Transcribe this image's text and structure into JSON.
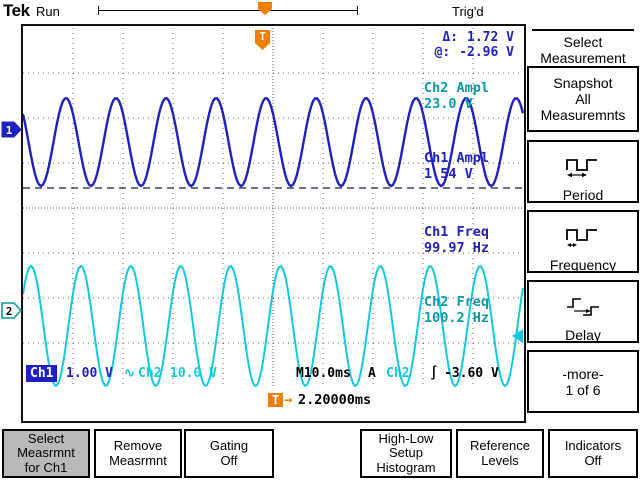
{
  "header": {
    "brand": "Tek",
    "acq_status": "Run",
    "trig_status": "Trig'd"
  },
  "cursor_readout": {
    "delta_label": "Δ:",
    "delta_value": "1.72 V",
    "at_label": "@:",
    "at_value": "-2.96 V"
  },
  "measurements": [
    {
      "label": "Ch2 Ampl\n23.0 V"
    },
    {
      "label": "Ch1 Ampl\n1.54 V"
    },
    {
      "label": "Ch1 Freq\n99.97 Hz"
    },
    {
      "label": "Ch2 Freq\n100.2 Hz"
    }
  ],
  "markers": {
    "ch1": "1",
    "ch2": "2",
    "trigger": "T"
  },
  "status_bar": {
    "ch1_label": "Ch1",
    "ch1_scale": "1.00 V",
    "coupling_symbol": "∿",
    "ch2_label": "Ch2",
    "ch2_scale": "10.0 V",
    "timebase": "M10.0ms",
    "trig_mode": "A",
    "trig_source": "Ch2",
    "trig_slope": "∫",
    "trig_level": "-3.60 V",
    "delay_marker": "T",
    "delay_arrow": "→",
    "delay_value": "2.20000ms"
  },
  "side_menu": {
    "title": "Select\nMeasurement",
    "items": [
      {
        "label": "Snapshot\nAll\nMeasuremnts"
      },
      {
        "label": "Period"
      },
      {
        "label": "Frequency"
      },
      {
        "label": "Delay"
      },
      {
        "label": "-more-\n1 of 6"
      }
    ]
  },
  "bottom_menu": {
    "items": [
      {
        "label": "Select\nMeasrmnt\nfor Ch1",
        "selected": true
      },
      {
        "label": "Remove\nMeasrmnt",
        "selected": false
      },
      {
        "label": "Gating\nOff",
        "selected": false
      },
      {
        "label": "High-Low\nSetup\nHistogram",
        "selected": false
      },
      {
        "label": "Reference\nLevels",
        "selected": false
      },
      {
        "label": "Indicators\nOff",
        "selected": false
      }
    ]
  },
  "colors": {
    "ch1": "#2020c0",
    "ch2": "#14c8dc",
    "ch2_text": "#0a9aa4",
    "accent_orange": "#ef7f00",
    "grid_dot": "#666666",
    "selected_bg": "#b9b9b9"
  },
  "chart_data": {
    "type": "line",
    "title": "Oscilloscope traces",
    "timebase_ms_per_div": 10.0,
    "horizontal_divisions": 10,
    "vertical_divisions": 8,
    "series": [
      {
        "name": "Ch1",
        "waveform": "sine",
        "frequency_hz": 99.97,
        "amplitude_v": 1.54,
        "volts_per_div": 1.0
      },
      {
        "name": "Ch2",
        "waveform": "sine",
        "frequency_hz": 100.2,
        "amplitude_v": 23.0,
        "volts_per_div": 10.0
      }
    ],
    "trigger": {
      "source": "Ch2",
      "slope": "rising",
      "level_v": -3.6,
      "delay_ms": 2.2
    }
  }
}
